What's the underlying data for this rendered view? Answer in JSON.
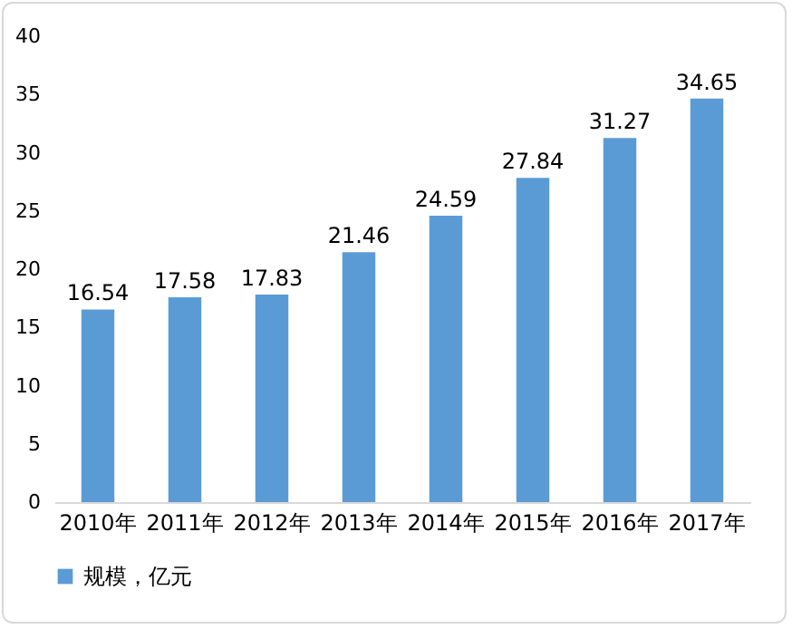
{
  "chart_data": {
    "type": "bar",
    "categories": [
      "2010年",
      "2011年",
      "2012年",
      "2013年",
      "2014年",
      "2015年",
      "2016年",
      "2017年"
    ],
    "series": [
      {
        "name": "规模，亿元",
        "color": "#5b9bd5",
        "values": [
          16.54,
          17.58,
          17.83,
          21.46,
          24.59,
          27.84,
          31.27,
          34.65
        ]
      }
    ],
    "ylim": [
      0,
      40
    ],
    "yticks": [
      0,
      5,
      10,
      15,
      20,
      25,
      30,
      35,
      40
    ],
    "data_labels": true,
    "legend": "bottom",
    "grid": false
  }
}
